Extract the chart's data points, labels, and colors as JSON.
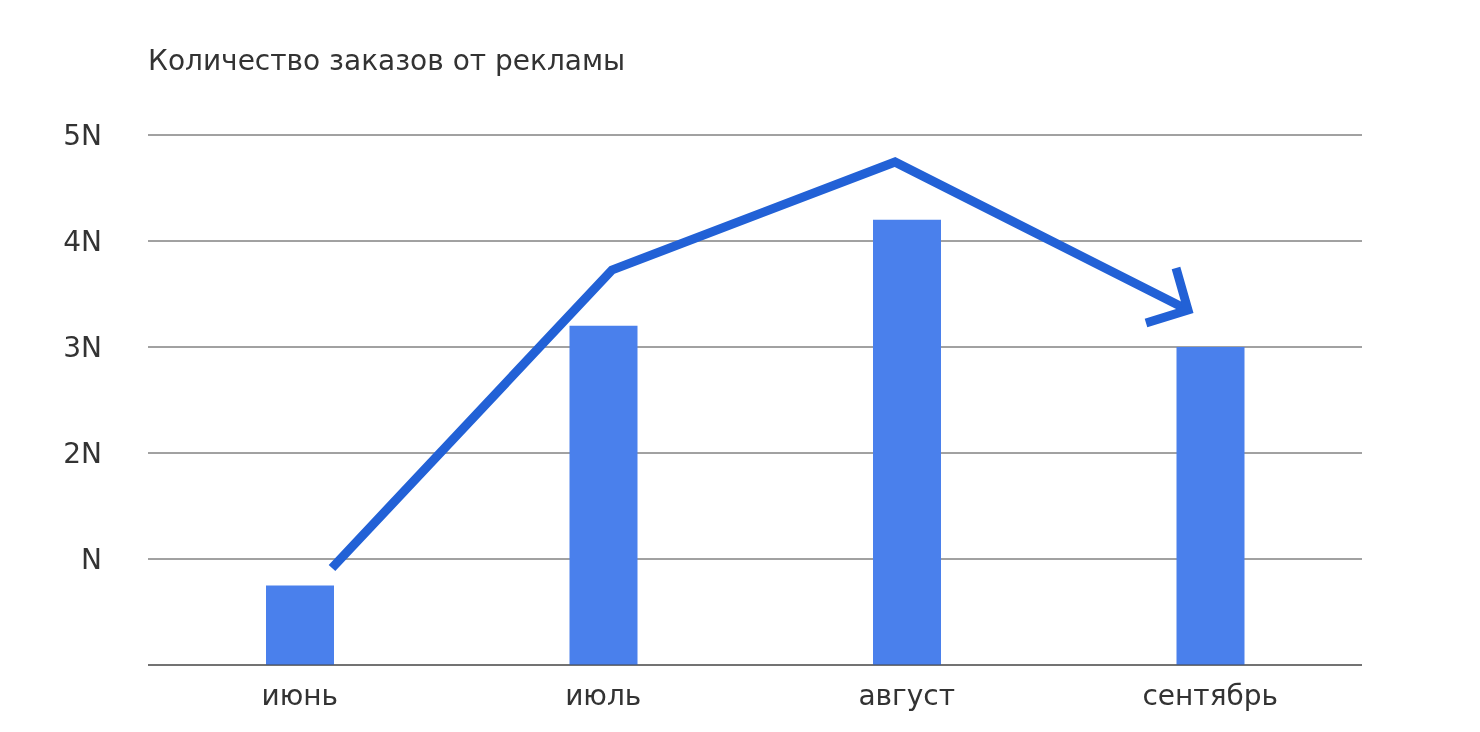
{
  "chart_data": {
    "type": "bar",
    "title": "Количество заказов от рекламы",
    "categories": [
      "июнь",
      "июль",
      "август",
      "сентябрь"
    ],
    "values": [
      0.75,
      3.2,
      4.2,
      3.0
    ],
    "color": "#4a80ec",
    "ylim": [
      0,
      5
    ],
    "yticks": [
      {
        "value": 1,
        "label": "N"
      },
      {
        "value": 2,
        "label": "2N"
      },
      {
        "value": 3,
        "label": "3N"
      },
      {
        "value": 4,
        "label": "4N"
      },
      {
        "value": 5,
        "label": "5N"
      }
    ],
    "grid": "y"
  }
}
